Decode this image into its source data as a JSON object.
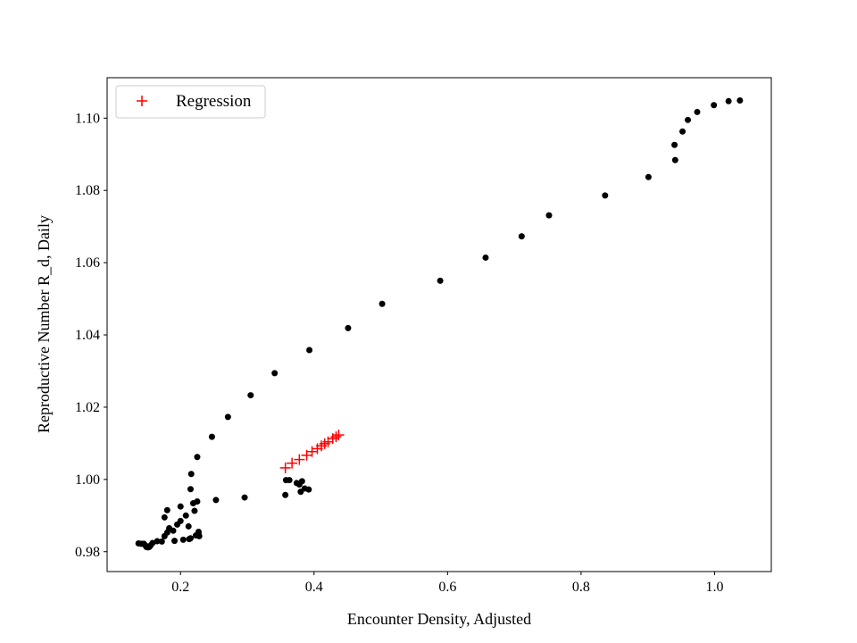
{
  "chart_data": {
    "type": "scatter",
    "title": "",
    "xlabel": "Encounter Density, Adjusted",
    "ylabel": "Reproductive Number R_d, Daily",
    "xlim": [
      0.09,
      1.085
    ],
    "ylim": [
      0.9745,
      1.1112
    ],
    "xticks": [
      0.2,
      0.4,
      0.6,
      0.8,
      1.0
    ],
    "xtick_labels": [
      "0.2",
      "0.4",
      "0.6",
      "0.8",
      "1.0"
    ],
    "yticks": [
      0.98,
      1.0,
      1.02,
      1.04,
      1.06,
      1.08,
      1.1
    ],
    "ytick_labels": [
      "0.98",
      "1.00",
      "1.02",
      "1.04",
      "1.06",
      "1.08",
      "1.10"
    ],
    "grid": false,
    "legend": {
      "placement": "upper-left",
      "entries": [
        "Regression"
      ]
    },
    "colors": {
      "data": "#000000",
      "regression": "#ff0000"
    },
    "series": [
      {
        "marker": "dot",
        "x": [
          0.137,
          0.141,
          0.145,
          0.147,
          0.149,
          0.151,
          0.153,
          0.155,
          0.158,
          0.165,
          0.172,
          0.176,
          0.18,
          0.183,
          0.191,
          0.195,
          0.2,
          0.204,
          0.208,
          0.212,
          0.213,
          0.215,
          0.216,
          0.219,
          0.221,
          0.225,
          0.228,
          0.227,
          0.225,
          0.176,
          0.18,
          0.189,
          0.2,
          0.215,
          0.223,
          0.227,
          0.247,
          0.253,
          0.271,
          0.296,
          0.305,
          0.341,
          0.357,
          0.358,
          0.363,
          0.374,
          0.378,
          0.38,
          0.382,
          0.386,
          0.392,
          0.393,
          0.451,
          0.502,
          0.589,
          0.657,
          0.711,
          0.752,
          0.836,
          0.901,
          0.94,
          0.941,
          0.952,
          0.96,
          0.974,
          0.999,
          1.021,
          1.038
        ],
        "y": [
          0.9823,
          0.9822,
          0.9822,
          0.9818,
          0.9813,
          0.9812,
          0.9813,
          0.9817,
          0.9824,
          0.9829,
          0.9828,
          0.9843,
          0.9853,
          0.9865,
          0.983,
          0.9875,
          0.9885,
          0.9833,
          0.99,
          0.987,
          0.9835,
          0.9973,
          1.0015,
          0.9934,
          0.9913,
          0.9939,
          0.9843,
          0.9855,
          1.0062,
          0.9895,
          0.9915,
          0.9858,
          0.9925,
          0.9837,
          0.9845,
          0.9849,
          1.0118,
          0.9943,
          1.0173,
          0.995,
          1.0233,
          1.0294,
          0.9957,
          0.9998,
          0.9998,
          0.999,
          0.9986,
          0.9966,
          0.9995,
          0.9975,
          0.9972,
          1.0358,
          1.0419,
          1.0486,
          1.055,
          1.0614,
          1.0673,
          1.0731,
          1.0786,
          1.0837,
          1.0926,
          1.0884,
          1.0963,
          1.0995,
          1.1017,
          1.1036,
          1.1047,
          1.1049
        ]
      },
      {
        "name": "Regression",
        "marker": "plus",
        "x": [
          0.357,
          0.367,
          0.378,
          0.389,
          0.397,
          0.405,
          0.411,
          0.416,
          0.421,
          0.428,
          0.433,
          0.437
        ],
        "y": [
          1.0032,
          1.0045,
          1.0055,
          1.0067,
          1.0077,
          1.0085,
          1.0093,
          1.0099,
          1.0104,
          1.0113,
          1.0118,
          1.0123
        ]
      }
    ]
  }
}
